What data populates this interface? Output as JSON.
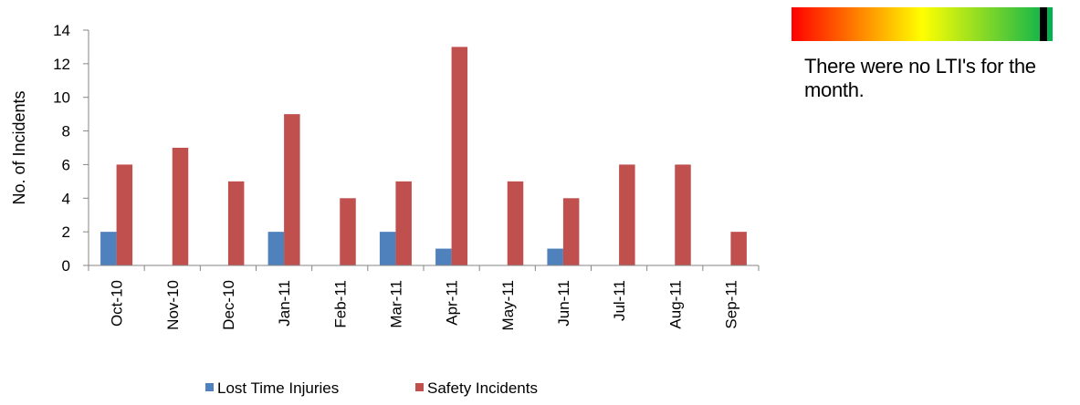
{
  "chart_data": {
    "type": "bar",
    "categories": [
      "Oct-10",
      "Nov-10",
      "Dec-10",
      "Jan-11",
      "Feb-11",
      "Mar-11",
      "Apr-11",
      "May-11",
      "Jun-11",
      "Jul-11",
      "Aug-11",
      "Sep-11"
    ],
    "series": [
      {
        "name": "Lost Time Injuries",
        "color": "#4f81bd",
        "values": [
          2,
          0,
          0,
          2,
          0,
          2,
          1,
          0,
          1,
          0,
          0,
          0
        ]
      },
      {
        "name": "Safety Incidents",
        "color": "#c0504d",
        "values": [
          6,
          7,
          5,
          9,
          4,
          5,
          13,
          5,
          4,
          6,
          6,
          2
        ]
      }
    ],
    "ylabel": "No. of Incidents",
    "xlabel": "",
    "ylim": [
      0,
      14
    ],
    "yticks": [
      0,
      2,
      4,
      6,
      8,
      10,
      12,
      14
    ],
    "grid": false,
    "legend": "bottom"
  },
  "gauge": {
    "colors": [
      "#ff0000",
      "#ffff00",
      "#00b050"
    ],
    "marker_fraction": 0.965
  },
  "note": {
    "text": "There were no LTI's for the month."
  }
}
